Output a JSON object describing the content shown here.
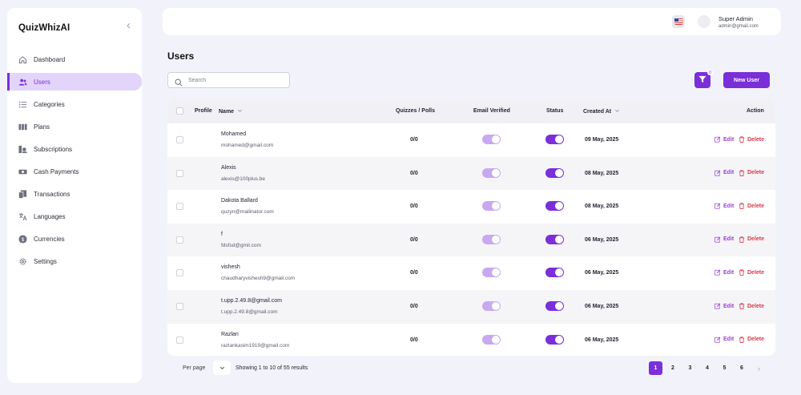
{
  "app": {
    "brand": "QuizWhizAI"
  },
  "sidebar": {
    "items": [
      {
        "label": "Dashboard",
        "icon": "home-icon"
      },
      {
        "label": "Users",
        "icon": "users-icon",
        "active": true
      },
      {
        "label": "Categories",
        "icon": "list-icon"
      },
      {
        "label": "Plans",
        "icon": "columns-icon"
      },
      {
        "label": "Subscriptions",
        "icon": "subscription-icon"
      },
      {
        "label": "Cash Payments",
        "icon": "cash-icon"
      },
      {
        "label": "Transactions",
        "icon": "transactions-icon"
      },
      {
        "label": "Languages",
        "icon": "language-icon"
      },
      {
        "label": "Currencies",
        "icon": "currency-icon"
      },
      {
        "label": "Settings",
        "icon": "gear-icon"
      }
    ]
  },
  "topbar": {
    "user_name": "Super Admin",
    "user_email": "admin@gmail.com",
    "flag": "us-flag-icon"
  },
  "page": {
    "title": "Users"
  },
  "search": {
    "placeholder": "Search"
  },
  "filter": {
    "badge": "0"
  },
  "new_user_label": "New User",
  "table": {
    "headers": {
      "profile": "Profile",
      "name": "Name",
      "quizzes": "Quizzes / Polls",
      "email_verified": "Email Verified",
      "status": "Status",
      "created_at": "Created At",
      "action": "Action"
    },
    "edit_label": "Edit",
    "delete_label": "Delete",
    "rows": [
      {
        "name": "Mohamed",
        "email": "mohamed@gmail.com",
        "quizzes": "0/0",
        "email_verified": true,
        "status": true,
        "created_at": "09 May, 2025"
      },
      {
        "name": "Alexis",
        "email": "alexis@100plus.be",
        "quizzes": "0/0",
        "email_verified": true,
        "status": true,
        "created_at": "08 May, 2025"
      },
      {
        "name": "Dakota Ballard",
        "email": "quzyn@mailinator.com",
        "quizzes": "0/0",
        "email_verified": true,
        "status": true,
        "created_at": "08 May, 2025"
      },
      {
        "name": "f",
        "email": "fdsfsd@gmil.com",
        "quizzes": "0/0",
        "email_verified": true,
        "status": true,
        "created_at": "06 May, 2025"
      },
      {
        "name": "vishesh",
        "email": "chaudharyvishesh9@gmail.com",
        "quizzes": "0/0",
        "email_verified": true,
        "status": true,
        "created_at": "06 May, 2025"
      },
      {
        "name": "t.upp.2.49.8@gmail.com",
        "email": "t.upp.2.49.8@gmail.com",
        "quizzes": "0/0",
        "email_verified": true,
        "status": true,
        "created_at": "06 May, 2025"
      },
      {
        "name": "Razlan",
        "email": "razlankasim1919@gmail.com",
        "quizzes": "0/0",
        "email_verified": true,
        "status": true,
        "created_at": "06 May, 2025"
      }
    ]
  },
  "footer": {
    "per_page_label": "Per page",
    "showing": "Showing 1 to 10 of 55 results",
    "pages": [
      "1",
      "2",
      "3",
      "4",
      "5",
      "6"
    ],
    "current_page": "1",
    "next": "›"
  },
  "colors": {
    "accent": "#7a2fd8",
    "accent_light": "#c9a8f2",
    "danger": "#d93a4a",
    "background": "#f2f3fa"
  }
}
